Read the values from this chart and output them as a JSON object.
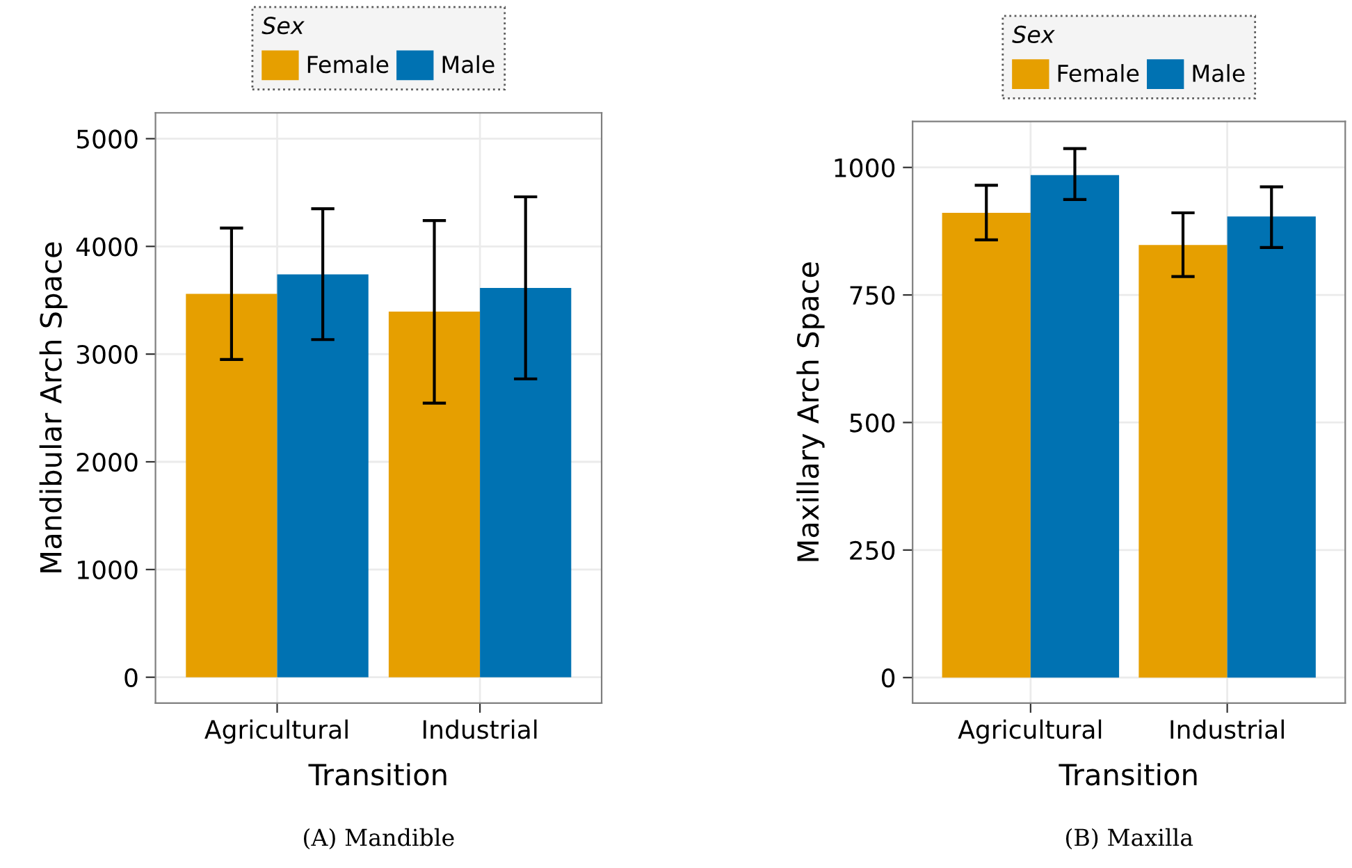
{
  "chart_data": [
    {
      "type": "bar",
      "categories": [
        "Agricultural",
        "Industrial"
      ],
      "xlabel": "Transition",
      "ylabel": "Mandibular Arch Space",
      "legend_title": "Sex",
      "legend": "top",
      "grid": true,
      "ylim": [
        -240,
        5240
      ],
      "yticks": [
        0,
        1000,
        2000,
        3000,
        4000,
        5000
      ],
      "annotations": [
        "(A) Mandible"
      ],
      "series": [
        {
          "name": "Female",
          "color": "#e69f00",
          "values": [
            3560,
            3395
          ],
          "errors": [
            [
              2950,
              4170
            ],
            [
              2545,
              4240
            ]
          ]
        },
        {
          "name": "Male",
          "color": "#0072b2",
          "values": [
            3740,
            3615
          ],
          "errors": [
            [
              3135,
              4350
            ],
            [
              2770,
              4460
            ]
          ]
        }
      ]
    },
    {
      "type": "bar",
      "categories": [
        "Agricultural",
        "Industrial"
      ],
      "xlabel": "Transition",
      "ylabel": "Maxillary Arch Space",
      "legend_title": "Sex",
      "legend": "top",
      "grid": true,
      "ylim": [
        -50,
        1090
      ],
      "yticks": [
        0,
        250,
        500,
        750,
        1000
      ],
      "annotations": [
        "(B) Maxilla"
      ],
      "series": [
        {
          "name": "Female",
          "color": "#e69f00",
          "values": [
            911,
            848
          ],
          "errors": [
            [
              858,
              965
            ],
            [
              786,
              911
            ]
          ]
        },
        {
          "name": "Male",
          "color": "#0072b2",
          "values": [
            985,
            904
          ],
          "errors": [
            [
              937,
              1037
            ],
            [
              843,
              962
            ]
          ]
        }
      ]
    }
  ]
}
